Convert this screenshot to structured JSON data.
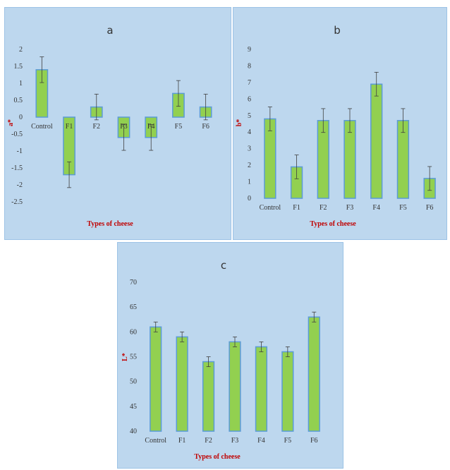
{
  "colors": {
    "panel_bg": "#bdd7ee",
    "panel_border": "#9dc3e6",
    "bar_fill": "#92d050",
    "bar_stroke": "#5b9bd5",
    "error_bar": "#404040",
    "axis_label": "#c00000"
  },
  "chart_data": [
    {
      "type": "bar",
      "title": "a",
      "xlabel": "Types of cheese",
      "ylabel": "a*",
      "categories": [
        "Control",
        "F1",
        "F2",
        "F3",
        "F4",
        "F5",
        "F6"
      ],
      "values": [
        1.4,
        -1.7,
        0.3,
        -0.6,
        -0.6,
        0.7,
        0.3
      ],
      "errors": [
        0.38,
        0.38,
        0.38,
        0.38,
        0.38,
        0.38,
        0.38
      ],
      "ylim": [
        -2.5,
        2
      ],
      "yticks": [
        2,
        1.5,
        1,
        0.5,
        0,
        -0.5,
        -1,
        -1.5,
        -2,
        -2.5
      ],
      "ytick_labels": [
        "2",
        "1.5",
        "1",
        "0.5",
        "0",
        "-0.5",
        "-1",
        "-1.5",
        "-2",
        "-2.5"
      ],
      "grid": false,
      "category_labels_at_zero": true
    },
    {
      "type": "bar",
      "title": "b",
      "xlabel": "Types of cheese",
      "ylabel": "b*",
      "categories": [
        "Control",
        "F1",
        "F2",
        "F3",
        "F4",
        "F5",
        "F6"
      ],
      "values": [
        4.8,
        1.9,
        4.7,
        4.7,
        6.9,
        4.7,
        1.2
      ],
      "errors": [
        0.72,
        0.72,
        0.72,
        0.72,
        0.72,
        0.72,
        0.72
      ],
      "ylim": [
        0,
        9
      ],
      "yticks": [
        9,
        8,
        7,
        6,
        5,
        4,
        3,
        2,
        1,
        0
      ],
      "ytick_labels": [
        "9",
        "8",
        "7",
        "6",
        "5",
        "4",
        "3",
        "2",
        "1",
        "0"
      ],
      "grid": false
    },
    {
      "type": "bar",
      "title": "c",
      "xlabel": "Types of cheese",
      "ylabel": "L*",
      "categories": [
        "Control",
        "F1",
        "F2",
        "F3",
        "F4",
        "F5",
        "F6"
      ],
      "values": [
        61,
        59,
        54,
        58,
        57,
        56,
        63
      ],
      "errors": [
        1,
        1,
        1,
        1,
        1,
        1,
        1
      ],
      "ylim": [
        40,
        70
      ],
      "yticks": [
        70,
        65,
        60,
        55,
        50,
        45,
        40
      ],
      "ytick_labels": [
        "70",
        "65",
        "60",
        "55",
        "50",
        "45",
        "40"
      ],
      "grid": false
    }
  ]
}
